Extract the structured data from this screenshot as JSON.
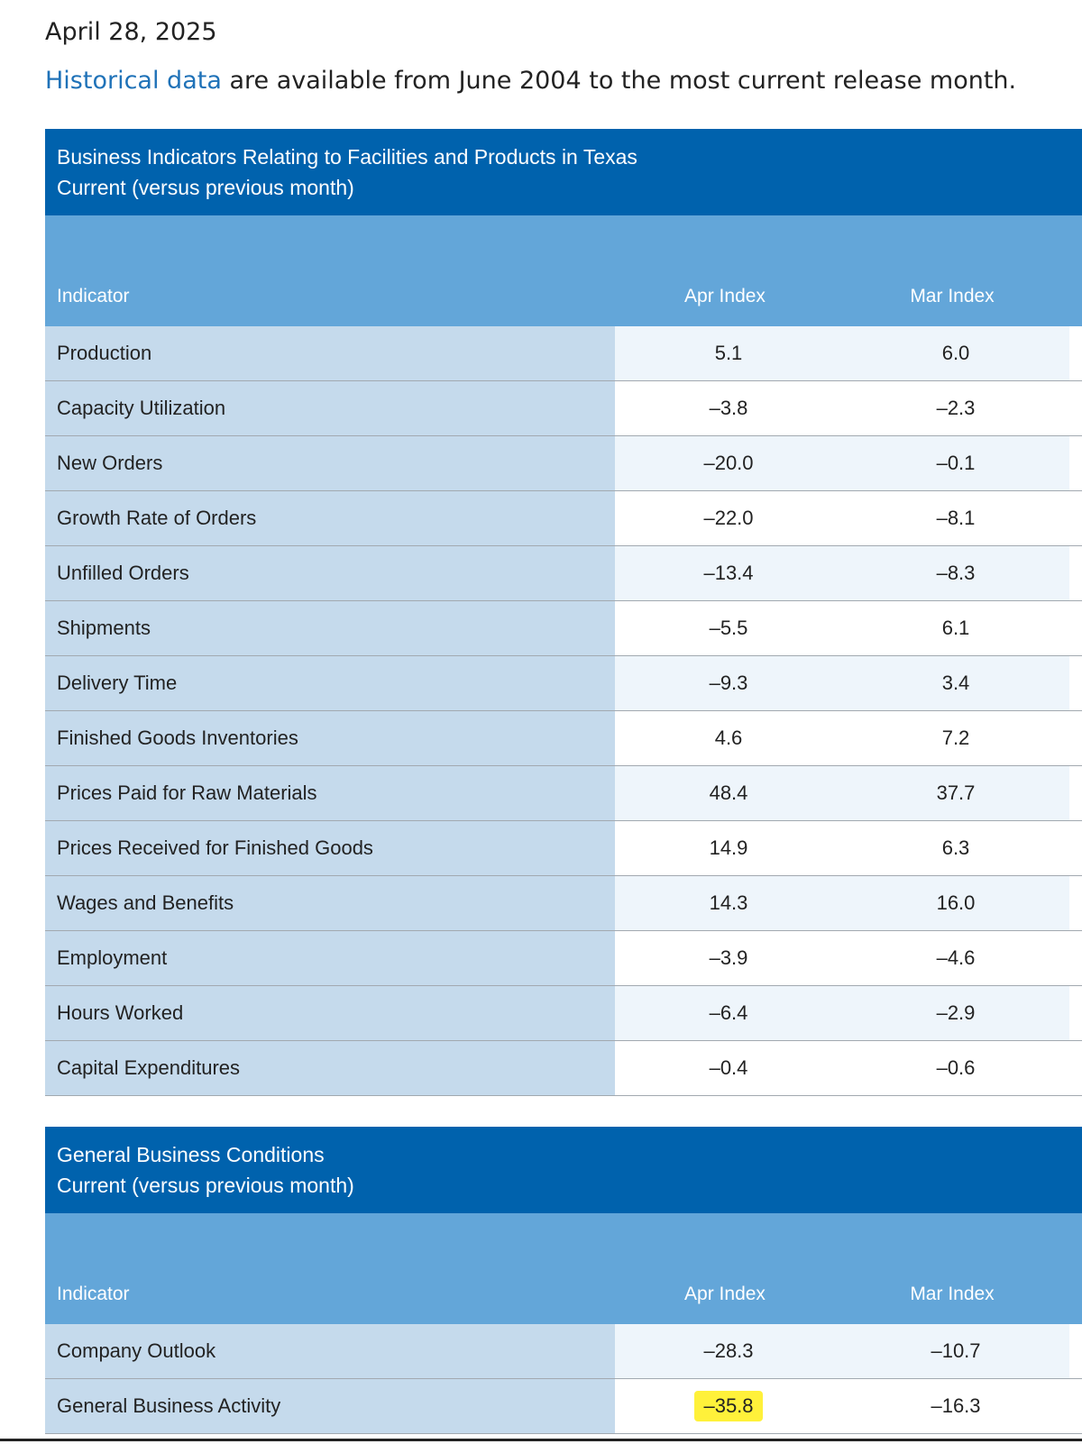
{
  "header": {
    "date": "April 28, 2025",
    "historical_link": "Historical data",
    "intro_rest": " are available from June 2004 to the most current release month."
  },
  "colors": {
    "title_bar": "#0062ad",
    "column_header": "#63a6d9",
    "indicator_column": "#c5daec",
    "link": "#1f72b8",
    "highlight": "#fff13a"
  },
  "table1": {
    "title": "Business Indicators Relating to Facilities and Products in Texas",
    "subtitle": "Current (versus previous month)",
    "columns": [
      "Indicator",
      "Apr Index",
      "Mar Index"
    ],
    "rows": [
      {
        "indicator": "Production",
        "apr": "5.1",
        "mar": "6.0"
      },
      {
        "indicator": "Capacity Utilization",
        "apr": "–3.8",
        "mar": "–2.3"
      },
      {
        "indicator": "New Orders",
        "apr": "–20.0",
        "mar": "–0.1"
      },
      {
        "indicator": "Growth Rate of Orders",
        "apr": "–22.0",
        "mar": "–8.1"
      },
      {
        "indicator": "Unfilled Orders",
        "apr": "–13.4",
        "mar": "–8.3"
      },
      {
        "indicator": "Shipments",
        "apr": "–5.5",
        "mar": "6.1"
      },
      {
        "indicator": "Delivery Time",
        "apr": "–9.3",
        "mar": "3.4"
      },
      {
        "indicator": "Finished Goods Inventories",
        "apr": "4.6",
        "mar": "7.2"
      },
      {
        "indicator": "Prices Paid for Raw Materials",
        "apr": "48.4",
        "mar": "37.7"
      },
      {
        "indicator": "Prices Received for Finished Goods",
        "apr": "14.9",
        "mar": "6.3"
      },
      {
        "indicator": "Wages and Benefits",
        "apr": "14.3",
        "mar": "16.0"
      },
      {
        "indicator": "Employment",
        "apr": "–3.9",
        "mar": "–4.6"
      },
      {
        "indicator": "Hours Worked",
        "apr": "–6.4",
        "mar": "–2.9"
      },
      {
        "indicator": "Capital Expenditures",
        "apr": "–0.4",
        "mar": "–0.6"
      }
    ]
  },
  "table2": {
    "title": "General Business Conditions",
    "subtitle": "Current (versus previous month)",
    "columns": [
      "Indicator",
      "Apr Index",
      "Mar Index"
    ],
    "rows": [
      {
        "indicator": "Company Outlook",
        "apr": "–28.3",
        "mar": "–10.7"
      },
      {
        "indicator": "General Business Activity",
        "apr": "–35.8",
        "mar": "–16.3",
        "highlight_apr": true
      }
    ]
  }
}
